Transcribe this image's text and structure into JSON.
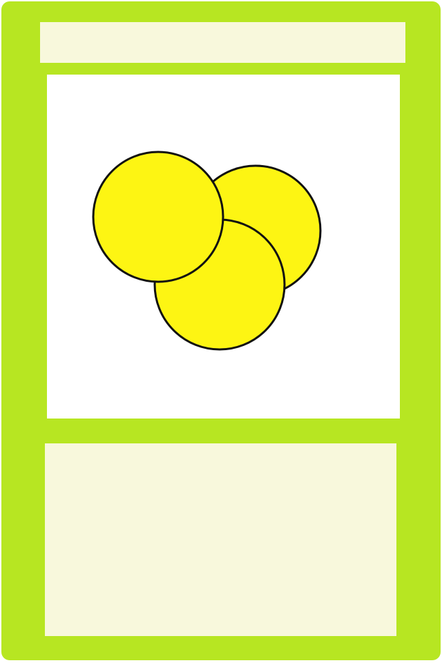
{
  "card": {
    "title": "",
    "description": "",
    "art": {
      "description_icon": "three-yellow-coins-icon",
      "coin_count": 3
    }
  },
  "colors": {
    "frame": "#b7e622",
    "title_bg": "#f8f8dc",
    "art_bg": "#ffffff",
    "text_bg": "#f8f8dc",
    "coin_fill": "#fdf513",
    "coin_stroke": "#111111"
  }
}
